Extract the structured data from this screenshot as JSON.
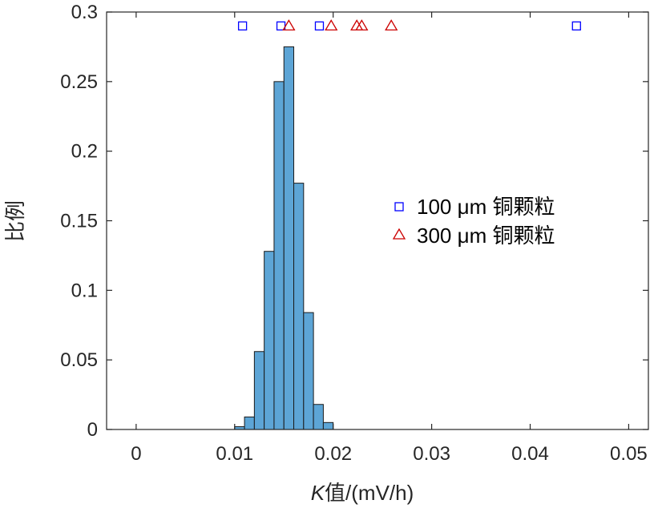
{
  "chart_data": {
    "type": "bar",
    "xlabel_italic": "K",
    "xlabel_rest": "值/(mV/h)",
    "ylabel": "比例",
    "xlim": [
      -0.003,
      0.052
    ],
    "ylim": [
      0,
      0.3
    ],
    "x_ticks": [
      0,
      0.01,
      0.02,
      0.03,
      0.04,
      0.05
    ],
    "x_tick_labels": [
      "0",
      "0.01",
      "0.02",
      "0.03",
      "0.04",
      "0.05"
    ],
    "y_ticks": [
      0,
      0.05,
      0.1,
      0.15,
      0.2,
      0.25,
      0.3
    ],
    "y_tick_labels": [
      "0",
      "0.05",
      "0.1",
      "0.15",
      "0.2",
      "0.25",
      "0.3"
    ],
    "grid": false,
    "legend_position": "right-center",
    "histogram": {
      "bin_width": 0.001,
      "bin_starts": [
        0.01,
        0.011,
        0.012,
        0.013,
        0.014,
        0.015,
        0.016,
        0.017,
        0.018,
        0.019
      ],
      "values": [
        0.002,
        0.009,
        0.056,
        0.128,
        0.25,
        0.275,
        0.177,
        0.084,
        0.018,
        0.005
      ],
      "color": "#5da5d6"
    },
    "series": [
      {
        "name": "100  μm 铜颗粒",
        "marker": "square",
        "color": "#0000ff",
        "x": [
          0.0108,
          0.0147,
          0.0186,
          0.0447
        ],
        "y": [
          0.29,
          0.29,
          0.29,
          0.29
        ]
      },
      {
        "name": "300  μm 铜颗粒",
        "marker": "triangle",
        "color": "#cc0000",
        "x": [
          0.0155,
          0.0198,
          0.0224,
          0.0229,
          0.0259
        ],
        "y": [
          0.29,
          0.29,
          0.29,
          0.29,
          0.29
        ]
      }
    ]
  }
}
